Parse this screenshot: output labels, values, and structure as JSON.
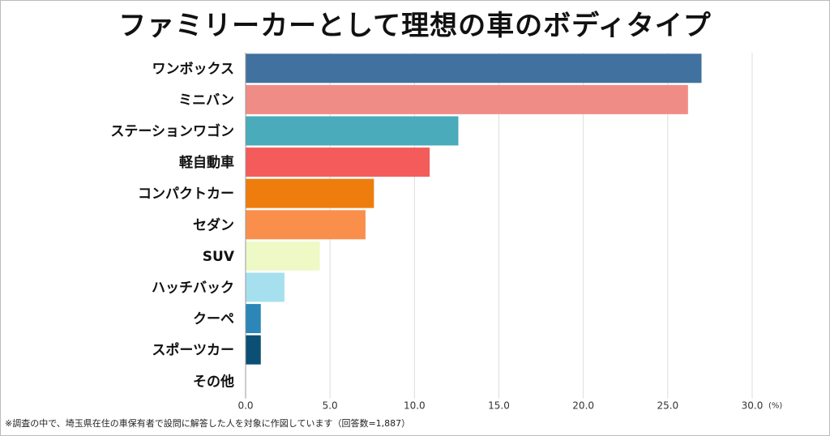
{
  "chart_data": {
    "type": "bar",
    "orientation": "horizontal",
    "title": "ファミリーカーとして理想の車のボディタイプ",
    "categories": [
      "ワンボックス",
      "ミニバン",
      "ステーションワゴン",
      "軽自動車",
      "コンパクトカー",
      "セダン",
      "SUV",
      "ハッチバック",
      "クーペ",
      "スポーツカー",
      "その他"
    ],
    "values": [
      27.0,
      26.2,
      12.6,
      10.9,
      7.6,
      7.1,
      4.4,
      2.3,
      0.9,
      0.9,
      0.0
    ],
    "colors": [
      "#41719f",
      "#f08c86",
      "#4aabba",
      "#f45b5b",
      "#ef7d0e",
      "#fa8f4c",
      "#eefac6",
      "#a6e0ee",
      "#2c86b8",
      "#0c4f75",
      "#cccccc"
    ],
    "xlim": [
      0,
      30
    ],
    "ticks": [
      "0.0",
      "5.0",
      "10.0",
      "15.0",
      "20.0",
      "25.0",
      "30.0"
    ],
    "unit": "(%)",
    "grid": true
  },
  "footnote": "※調査の中で、埼玉県在住の車保有者で設問に解答した人を対象に作図しています（回答数=1,887）"
}
